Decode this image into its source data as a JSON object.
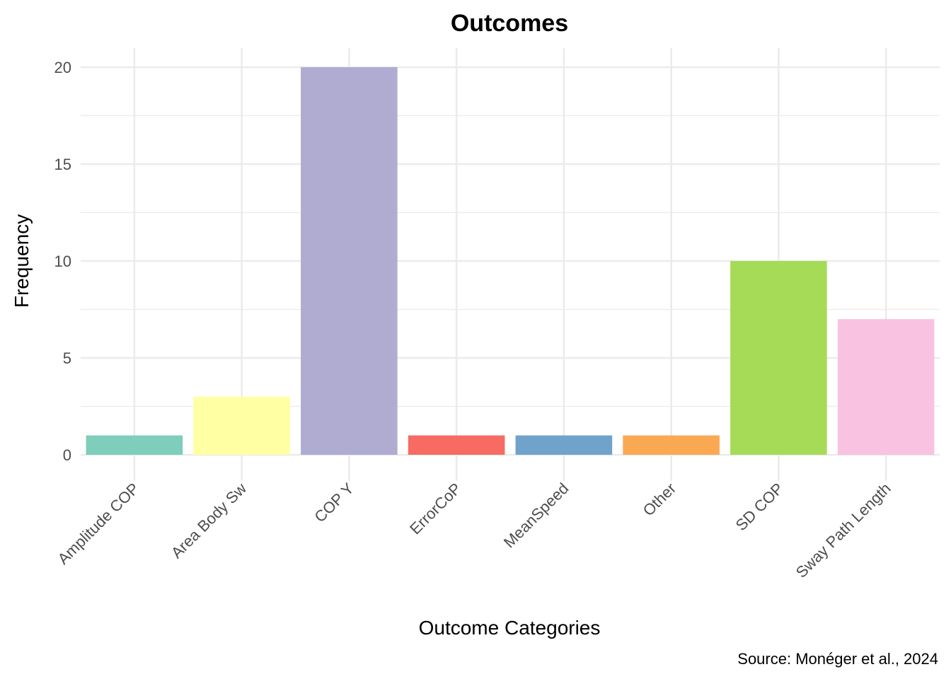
{
  "chart_data": {
    "type": "bar",
    "title": "Outcomes",
    "xlabel": "Outcome Categories",
    "ylabel": "Frequency",
    "caption": "Source: Monéger et al., 2024",
    "categories": [
      "Amplitude COP",
      "Area Body Sw",
      "COP Y",
      "ErrorCoP",
      "MeanSpeed",
      "Other",
      "SD COP",
      "Sway Path Length"
    ],
    "values": [
      1,
      3,
      20,
      1,
      1,
      1,
      10,
      7
    ],
    "colors": [
      "#7fcdbb",
      "#ffffa3",
      "#b0abd1",
      "#f76b62",
      "#6fa3cc",
      "#fba853",
      "#a6db57",
      "#f8c2e0"
    ],
    "ylim": [
      0,
      21
    ],
    "yticks": [
      0,
      5,
      10,
      15,
      20
    ],
    "grid": true,
    "legend": "none"
  }
}
